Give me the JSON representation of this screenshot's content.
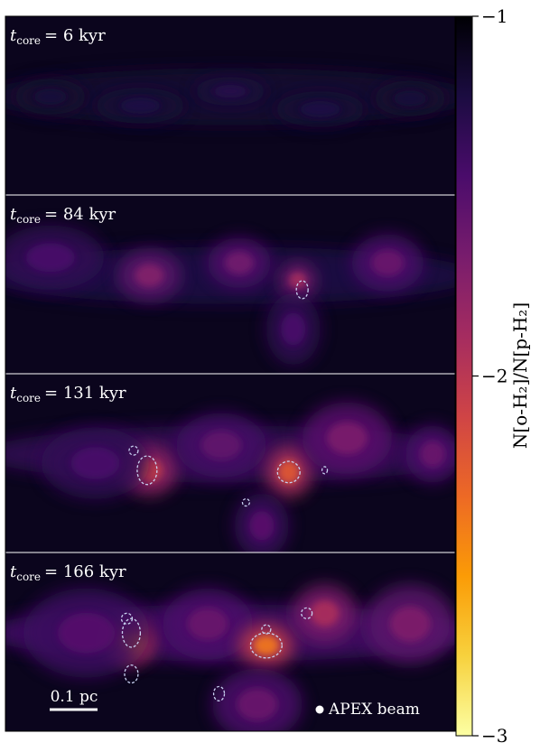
{
  "chart_data": {
    "type": "heatmap",
    "panels": [
      {
        "time_label": "= 6 kyr",
        "t_kyr": 6,
        "clumps": [
          {
            "cx": 0.1,
            "cy": 0.45,
            "rx": 0.08,
            "ry": 0.1,
            "v": 0.1
          },
          {
            "cx": 0.3,
            "cy": 0.5,
            "rx": 0.1,
            "ry": 0.1,
            "v": 0.12
          },
          {
            "cx": 0.5,
            "cy": 0.42,
            "rx": 0.08,
            "ry": 0.08,
            "v": 0.14
          },
          {
            "cx": 0.7,
            "cy": 0.52,
            "rx": 0.1,
            "ry": 0.1,
            "v": 0.12
          },
          {
            "cx": 0.9,
            "cy": 0.46,
            "rx": 0.08,
            "ry": 0.1,
            "v": 0.1
          }
        ],
        "contours": []
      },
      {
        "time_label": "= 84 kyr",
        "t_kyr": 84,
        "clumps": [
          {
            "cx": 0.1,
            "cy": 0.35,
            "rx": 0.12,
            "ry": 0.18,
            "v": 0.22
          },
          {
            "cx": 0.32,
            "cy": 0.45,
            "rx": 0.07,
            "ry": 0.14,
            "v": 0.36
          },
          {
            "cx": 0.52,
            "cy": 0.38,
            "rx": 0.07,
            "ry": 0.14,
            "v": 0.32
          },
          {
            "cx": 0.65,
            "cy": 0.48,
            "rx": 0.04,
            "ry": 0.1,
            "v": 0.45
          },
          {
            "cx": 0.64,
            "cy": 0.75,
            "rx": 0.06,
            "ry": 0.2,
            "v": 0.22
          },
          {
            "cx": 0.85,
            "cy": 0.38,
            "rx": 0.08,
            "ry": 0.16,
            "v": 0.3
          }
        ],
        "contours": [
          {
            "cx": 0.66,
            "cy": 0.53,
            "rx": 0.013,
            "ry": 0.05
          }
        ]
      },
      {
        "time_label": "= 131 kyr",
        "t_kyr": 131,
        "clumps": [
          {
            "cx": 0.32,
            "cy": 0.54,
            "rx": 0.06,
            "ry": 0.14,
            "v": 0.55
          },
          {
            "cx": 0.2,
            "cy": 0.5,
            "rx": 0.12,
            "ry": 0.2,
            "v": 0.22
          },
          {
            "cx": 0.48,
            "cy": 0.4,
            "rx": 0.1,
            "ry": 0.18,
            "v": 0.28
          },
          {
            "cx": 0.63,
            "cy": 0.55,
            "rx": 0.05,
            "ry": 0.14,
            "v": 0.62
          },
          {
            "cx": 0.57,
            "cy": 0.85,
            "rx": 0.06,
            "ry": 0.18,
            "v": 0.26
          },
          {
            "cx": 0.76,
            "cy": 0.36,
            "rx": 0.1,
            "ry": 0.2,
            "v": 0.34
          },
          {
            "cx": 0.95,
            "cy": 0.45,
            "rx": 0.06,
            "ry": 0.16,
            "v": 0.3
          }
        ],
        "contours": [
          {
            "cx": 0.315,
            "cy": 0.54,
            "rx": 0.022,
            "ry": 0.08
          },
          {
            "cx": 0.285,
            "cy": 0.43,
            "rx": 0.01,
            "ry": 0.025
          },
          {
            "cx": 0.63,
            "cy": 0.55,
            "rx": 0.025,
            "ry": 0.06
          },
          {
            "cx": 0.71,
            "cy": 0.54,
            "rx": 0.006,
            "ry": 0.02
          },
          {
            "cx": 0.535,
            "cy": 0.72,
            "rx": 0.008,
            "ry": 0.02
          }
        ]
      },
      {
        "time_label": "= 166 kyr",
        "t_kyr": 166,
        "clumps": [
          {
            "cx": 0.28,
            "cy": 0.5,
            "rx": 0.05,
            "ry": 0.12,
            "v": 0.72
          },
          {
            "cx": 0.18,
            "cy": 0.45,
            "rx": 0.14,
            "ry": 0.25,
            "v": 0.25
          },
          {
            "cx": 0.45,
            "cy": 0.4,
            "rx": 0.1,
            "ry": 0.2,
            "v": 0.3
          },
          {
            "cx": 0.58,
            "cy": 0.52,
            "rx": 0.06,
            "ry": 0.12,
            "v": 0.7
          },
          {
            "cx": 0.56,
            "cy": 0.85,
            "rx": 0.1,
            "ry": 0.2,
            "v": 0.3
          },
          {
            "cx": 0.71,
            "cy": 0.34,
            "rx": 0.07,
            "ry": 0.16,
            "v": 0.46
          },
          {
            "cx": 0.9,
            "cy": 0.4,
            "rx": 0.1,
            "ry": 0.22,
            "v": 0.35
          }
        ],
        "contours": [
          {
            "cx": 0.28,
            "cy": 0.45,
            "rx": 0.02,
            "ry": 0.08
          },
          {
            "cx": 0.28,
            "cy": 0.68,
            "rx": 0.015,
            "ry": 0.05
          },
          {
            "cx": 0.27,
            "cy": 0.37,
            "rx": 0.012,
            "ry": 0.03
          },
          {
            "cx": 0.58,
            "cy": 0.52,
            "rx": 0.035,
            "ry": 0.07
          },
          {
            "cx": 0.58,
            "cy": 0.43,
            "rx": 0.01,
            "ry": 0.025
          },
          {
            "cx": 0.67,
            "cy": 0.34,
            "rx": 0.012,
            "ry": 0.03
          },
          {
            "cx": 0.475,
            "cy": 0.79,
            "rx": 0.012,
            "ry": 0.04
          }
        ]
      }
    ],
    "colorbar": {
      "label": "N[o-H₂]/N[p-H₂]",
      "ticks": [
        "−1",
        "−2",
        "−3"
      ],
      "tick_values": [
        -1,
        -2,
        -3
      ],
      "range": [
        -1,
        -3
      ],
      "colormap": "inferno_r",
      "stops": [
        "#000004",
        "#1b0c41",
        "#4a0c6b",
        "#781c6d",
        "#a52c60",
        "#cf4446",
        "#ed6925",
        "#fb9b06",
        "#f7d13d",
        "#fcffa4"
      ]
    },
    "scalebar": {
      "label": "0.1 pc"
    },
    "beam": {
      "label": "APEX beam"
    },
    "text_color": "#ffffff",
    "contour_color": "#c8d0f0"
  }
}
